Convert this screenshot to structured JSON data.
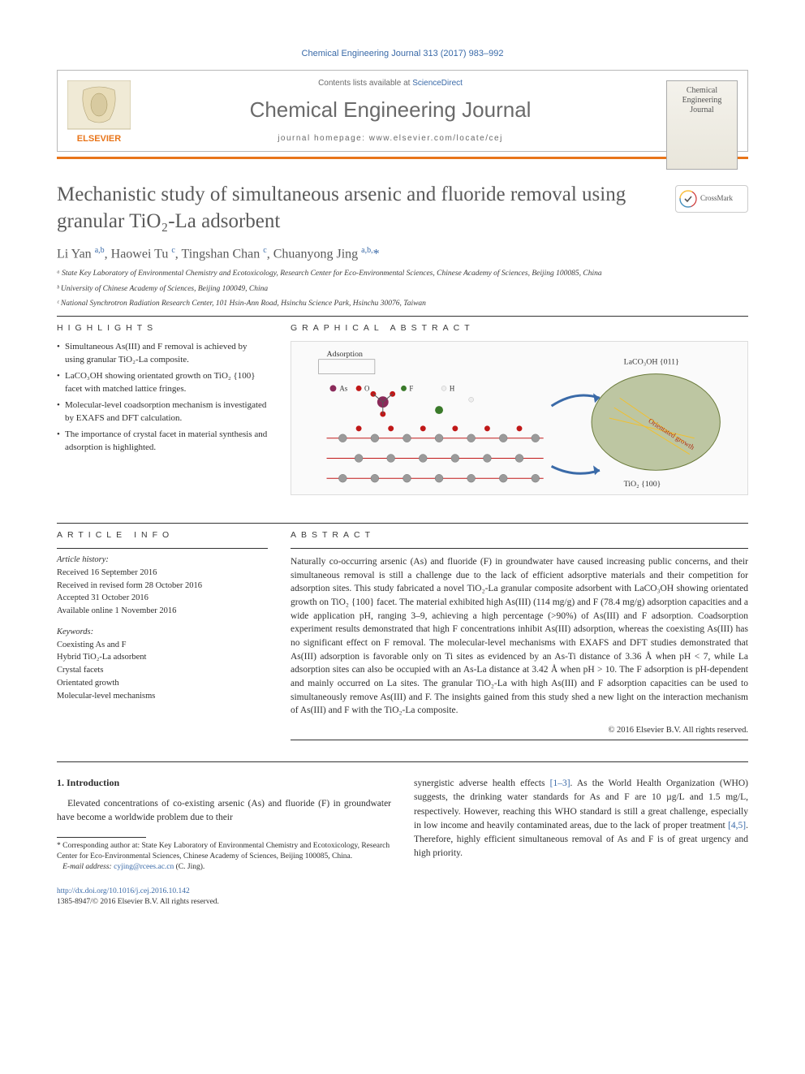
{
  "citation": "Chemical Engineering Journal 313 (2017) 983–992",
  "header": {
    "contents_prefix": "Contents lists available at ",
    "contents_link": "ScienceDirect",
    "journal_name": "Chemical Engineering Journal",
    "homepage_label": "journal homepage: www.elsevier.com/locate/cej",
    "cover_text": "Chemical Engineering Journal"
  },
  "colors": {
    "accent_orange": "#e8751a",
    "link_blue": "#3a6aa8",
    "heading_gray": "#5a5a5a",
    "body_text": "#2e2e2e"
  },
  "title": "Mechanistic study of simultaneous arsenic and fluoride removal using granular TiO₂-La adsorbent",
  "crossmark_label": "CrossMark",
  "authors_html": "Li Yan <sup>a,b</sup>, Haowei Tu <sup>c</sup>, Tingshan Chan <sup>c</sup>, Chuanyong Jing <sup>a,b,</sup><span class='star'>*</span>",
  "affiliations": [
    "ᵃ State Key Laboratory of Environmental Chemistry and Ecotoxicology, Research Center for Eco-Environmental Sciences, Chinese Academy of Sciences, Beijing 100085, China",
    "ᵇ University of Chinese Academy of Sciences, Beijing 100049, China",
    "ᶜ National Synchrotron Radiation Research Center, 101 Hsin-Ann Road, Hsinchu Science Park, Hsinchu 30076, Taiwan"
  ],
  "highlights": {
    "heading": "HIGHLIGHTS",
    "items": [
      "Simultaneous As(III) and F removal is achieved by using granular TiO₂-La composite.",
      "LaCO₃OH showing orientated growth on TiO₂ {100} facet with matched lattice fringes.",
      "Molecular-level coadsorption mechanism is investigated by EXAFS and DFT calculation.",
      "The importance of crystal facet in material synthesis and adsorption is highlighted."
    ]
  },
  "graphical_abstract": {
    "heading": "GRAPHICAL ABSTRACT",
    "labels": {
      "adsorption": "Adsorption",
      "la_surface": "LaCO₃OH {011}",
      "ti_surface": "TiO₂ {100}",
      "growth": "Orientated growth"
    },
    "atom_colors": {
      "As": "#8a2a5a",
      "O": "#c01818",
      "F": "#3a7a2a",
      "H": "#eeeeee",
      "Ti": "#9a9a9a",
      "La": "#7a8a54"
    }
  },
  "article_info": {
    "heading": "ARTICLE INFO",
    "history_label": "Article history:",
    "history": [
      "Received 16 September 2016",
      "Received in revised form 28 October 2016",
      "Accepted 31 October 2016",
      "Available online 1 November 2016"
    ],
    "keywords_label": "Keywords:",
    "keywords": [
      "Coexisting As and F",
      "Hybrid TiO₂-La adsorbent",
      "Crystal facets",
      "Orientated growth",
      "Molecular-level mechanisms"
    ]
  },
  "abstract": {
    "heading": "ABSTRACT",
    "text": "Naturally co-occurring arsenic (As) and fluoride (F) in groundwater have caused increasing public concerns, and their simultaneous removal is still a challenge due to the lack of efficient adsorptive materials and their competition for adsorption sites. This study fabricated a novel TiO₂-La granular composite adsorbent with LaCO₃OH showing orientated growth on TiO₂ {100} facet. The material exhibited high As(III) (114 mg/g) and F (78.4 mg/g) adsorption capacities and a wide application pH, ranging 3–9, achieving a high percentage (>90%) of As(III) and F adsorption. Coadsorption experiment results demonstrated that high F concentrations inhibit As(III) adsorption, whereas the coexisting As(III) has no significant effect on F removal. The molecular-level mechanisms with EXAFS and DFT studies demonstrated that As(III) adsorption is favorable only on Ti sites as evidenced by an As-Ti distance of 3.36 Å when pH < 7, while La adsorption sites can also be occupied with an As-La distance at 3.42 Å when pH > 10. The F adsorption is pH-dependent and mainly occurred on La sites. The granular TiO₂-La with high As(III) and F adsorption capacities can be used to simultaneously remove As(III) and F. The insights gained from this study shed a new light on the interaction mechanism of As(III) and F with the TiO₂-La composite.",
    "copyright": "© 2016 Elsevier B.V. All rights reserved."
  },
  "intro": {
    "heading": "1. Introduction",
    "col1": "Elevated concentrations of co-existing arsenic (As) and fluoride (F) in groundwater have become a worldwide problem due to their",
    "col2_parts": [
      "synergistic adverse health effects ",
      "[1–3]",
      ". As the World Health Organization (WHO) suggests, the drinking water standards for As and F are 10 µg/L and 1.5 mg/L, respectively. However, reaching this WHO standard is still a great challenge, especially in low income and heavily contaminated areas, due to the lack of proper treatment ",
      "[4,5]",
      ". Therefore, highly efficient simultaneous removal of As and F is of great urgency and high priority."
    ]
  },
  "footnote": {
    "corr_label": "* Corresponding author at: State Key Laboratory of Environmental Chemistry and Ecotoxicology, Research Center for Eco-Environmental Sciences, Chinese Academy of Sciences, Beijing 100085, China.",
    "email_label": "E-mail address: ",
    "email": "cyjing@rcees.ac.cn",
    "email_suffix": " (C. Jing)."
  },
  "doi": {
    "url": "http://dx.doi.org/10.1016/j.cej.2016.10.142",
    "issn_line": "1385-8947/© 2016 Elsevier B.V. All rights reserved."
  }
}
